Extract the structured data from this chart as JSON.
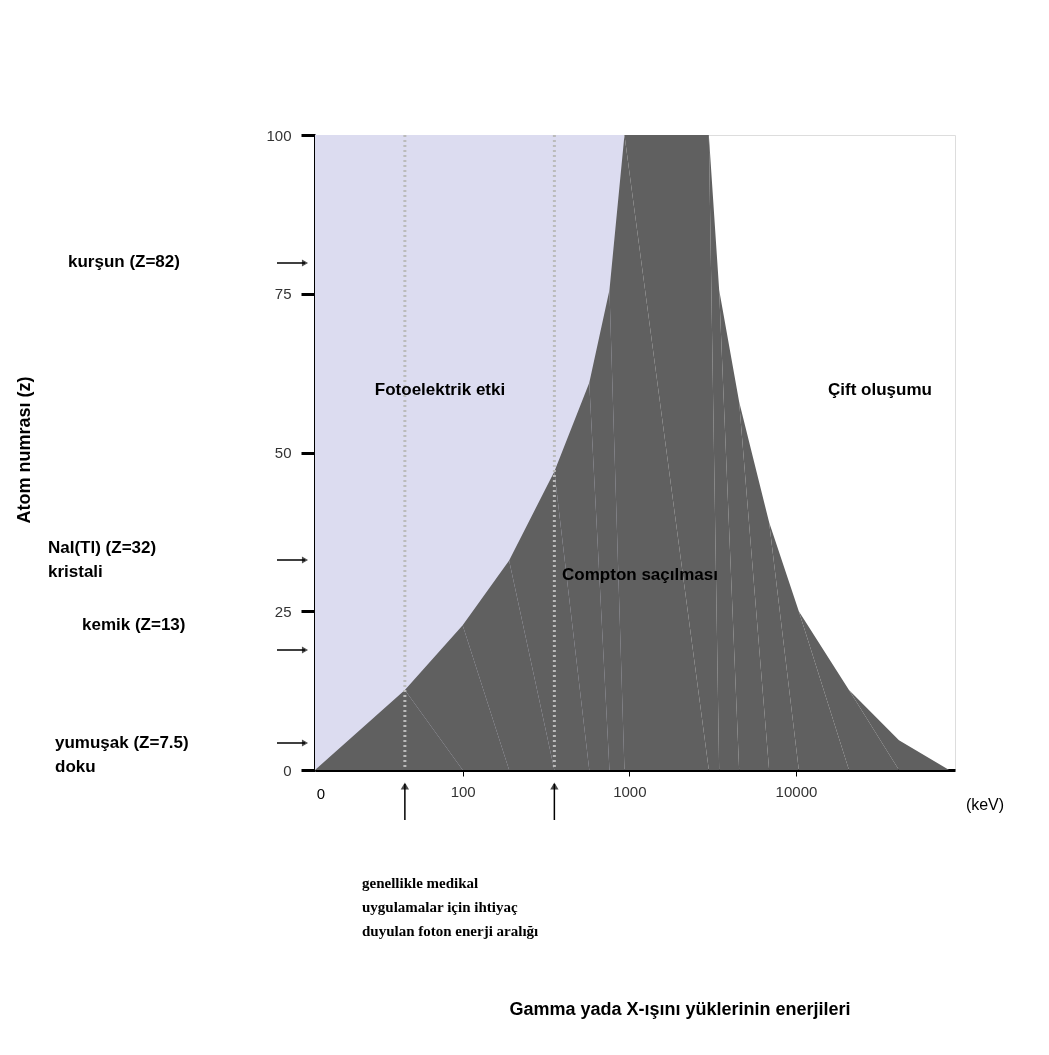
{
  "chart_data": {
    "type": "area",
    "log": "x",
    "grid": false,
    "xlim": [
      13,
      90000
    ],
    "xticks": [
      100,
      1000,
      10000
    ],
    "ylim": [
      0,
      100
    ],
    "yticks": [
      0,
      25,
      50,
      75,
      100
    ],
    "bands": [
      {
        "axis": "x",
        "from": 13,
        "to": 935,
        "color": "#dcdcf0"
      }
    ],
    "series": [
      {
        "color": "#606060",
        "x": [
          13,
          45,
          100,
          190,
          355,
          575,
          760,
          935,
          3000,
          3460,
          4560,
          6900,
          10400,
          20800,
          41500,
          83000
        ],
        "values": [
          0,
          12.6,
          22.8,
          33,
          47,
          61,
          75.6,
          100,
          100,
          75.6,
          58,
          39,
          25,
          12.6,
          4.7,
          0
        ]
      }
    ],
    "ref_lines": [
      {
        "axis": "x",
        "value": 45,
        "color": "#bbbbbb",
        "line_style": "dotted"
      },
      {
        "axis": "x",
        "value": 355,
        "color": "#bbbbbb",
        "line_style": "dotted"
      }
    ],
    "annotations": [
      "Fotoelektrik etki",
      "Compton saçılması",
      "Çift oluşumu",
      "kurşun (Z=82)",
      "NaI(Tl) (Z=32)\nkristali",
      "kemik  (Z=13)",
      "yumuşak  (Z=7.5)\ndoku",
      "(keV)",
      "genellikle medikal\nuygulamalar için ihtiyaç\nduyulan foton enerji aralığı",
      "Gamma yada X-ışını yüklerinin enerjileri",
      "Atom numrası (z)",
      "0"
    ]
  }
}
